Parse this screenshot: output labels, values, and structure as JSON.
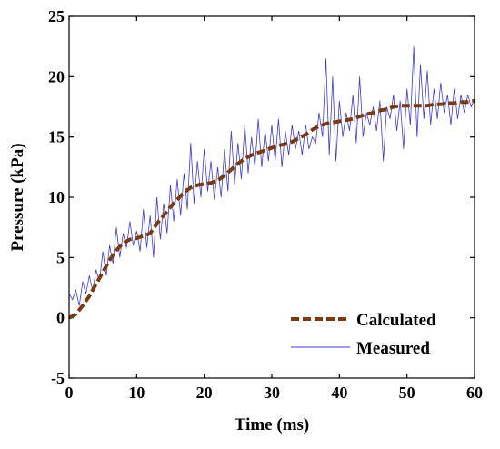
{
  "chart_data": {
    "type": "line",
    "title": "",
    "xlabel": "Time (ms)",
    "ylabel": "Pressure (kPa)",
    "xlim": [
      0,
      60
    ],
    "ylim": [
      -5,
      25
    ],
    "xticks": [
      "0",
      "10",
      "20",
      "30",
      "40",
      "50",
      "60"
    ],
    "yticks": [
      "-5",
      "0",
      "5",
      "10",
      "15",
      "20",
      "25"
    ],
    "grid": false,
    "legend_position": "bottom-right",
    "series": [
      {
        "name": "Calculated",
        "style": "dashed",
        "color": "#7a3b10",
        "x": [
          0,
          1,
          2,
          3,
          4,
          5,
          6,
          7,
          8,
          9,
          10,
          11,
          12,
          13,
          14,
          15,
          16,
          17,
          18,
          19,
          20,
          21,
          22,
          23,
          24,
          25,
          26,
          27,
          28,
          29,
          30,
          31,
          32,
          33,
          34,
          35,
          36,
          37,
          38,
          39,
          40,
          41,
          42,
          43,
          44,
          45,
          46,
          47,
          48,
          49,
          50,
          51,
          52,
          53,
          54,
          55,
          56,
          57,
          58,
          59,
          60
        ],
        "y": [
          0,
          0.3,
          1.0,
          1.8,
          2.8,
          3.8,
          4.8,
          5.6,
          6.2,
          6.5,
          6.6,
          6.8,
          7.0,
          7.8,
          8.5,
          9.2,
          9.8,
          10.4,
          10.8,
          11.0,
          11.1,
          11.2,
          11.4,
          11.8,
          12.3,
          12.8,
          13.2,
          13.5,
          13.7,
          13.9,
          14.1,
          14.3,
          14.4,
          14.6,
          14.9,
          15.2,
          15.6,
          15.9,
          16.1,
          16.2,
          16.3,
          16.4,
          16.5,
          16.7,
          16.9,
          17.0,
          17.2,
          17.3,
          17.5,
          17.6,
          17.6,
          17.6,
          17.6,
          17.6,
          17.7,
          17.7,
          17.8,
          17.8,
          17.9,
          17.9,
          18.0
        ]
      },
      {
        "name": "Measured",
        "style": "solid",
        "color": "#3b3bd6",
        "x": [
          0,
          0.5,
          1,
          1.5,
          2,
          2.5,
          3,
          3.5,
          4,
          4.5,
          5,
          5.5,
          6,
          6.5,
          7,
          7.5,
          8,
          8.5,
          9,
          9.5,
          10,
          10.5,
          11,
          11.5,
          12,
          12.5,
          13,
          13.5,
          14,
          14.5,
          15,
          15.5,
          16,
          16.5,
          17,
          17.5,
          18,
          18.5,
          19,
          19.5,
          20,
          20.5,
          21,
          21.5,
          22,
          22.5,
          23,
          23.5,
          24,
          24.5,
          25,
          25.5,
          26,
          26.5,
          27,
          27.5,
          28,
          28.5,
          29,
          29.5,
          30,
          30.5,
          31,
          31.5,
          32,
          32.5,
          33,
          33.5,
          34,
          34.5,
          35,
          35.5,
          36,
          36.5,
          37,
          37.5,
          38,
          38.5,
          39,
          39.5,
          40,
          40.5,
          41,
          41.5,
          42,
          42.5,
          43,
          43.5,
          44,
          44.5,
          45,
          45.5,
          46,
          46.5,
          47,
          47.5,
          48,
          48.5,
          49,
          49.5,
          50,
          50.5,
          51,
          51.5,
          52,
          52.5,
          53,
          53.5,
          54,
          54.5,
          55,
          55.5,
          56,
          56.5,
          57,
          57.5,
          58,
          58.5,
          59,
          59.5,
          60
        ],
        "y": [
          2.0,
          1.5,
          2.3,
          1.0,
          3.0,
          2.0,
          3.5,
          2.2,
          4.0,
          3.0,
          5.5,
          3.5,
          6.0,
          4.5,
          7.5,
          5.0,
          7.0,
          5.8,
          8.0,
          6.0,
          7.2,
          5.5,
          9.0,
          5.8,
          8.5,
          5.0,
          10.0,
          6.5,
          9.5,
          7.0,
          11.0,
          8.0,
          11.5,
          8.5,
          12.0,
          9.0,
          14.5,
          9.5,
          13.0,
          10.0,
          14.0,
          10.5,
          13.0,
          9.8,
          12.5,
          10.0,
          14.0,
          10.5,
          15.5,
          11.0,
          14.5,
          11.5,
          16.0,
          12.0,
          15.0,
          12.5,
          16.5,
          12.5,
          15.5,
          13.0,
          16.0,
          13.0,
          16.5,
          12.5,
          15.5,
          13.5,
          16.0,
          14.0,
          15.5,
          13.5,
          16.0,
          14.0,
          15.0,
          14.5,
          17.0,
          15.0,
          21.5,
          13.5,
          20.0,
          13.0,
          18.0,
          15.0,
          17.0,
          15.5,
          18.5,
          14.5,
          20.0,
          15.0,
          17.0,
          16.0,
          17.5,
          15.5,
          18.0,
          13.0,
          17.5,
          16.5,
          18.5,
          15.5,
          18.0,
          14.0,
          19.0,
          16.0,
          22.5,
          15.0,
          21.0,
          16.5,
          20.5,
          16.0,
          19.0,
          16.5,
          19.5,
          17.0,
          18.5,
          16.0,
          19.0,
          16.5,
          18.5,
          17.0,
          18.5,
          17.5,
          18.2
        ]
      }
    ]
  }
}
